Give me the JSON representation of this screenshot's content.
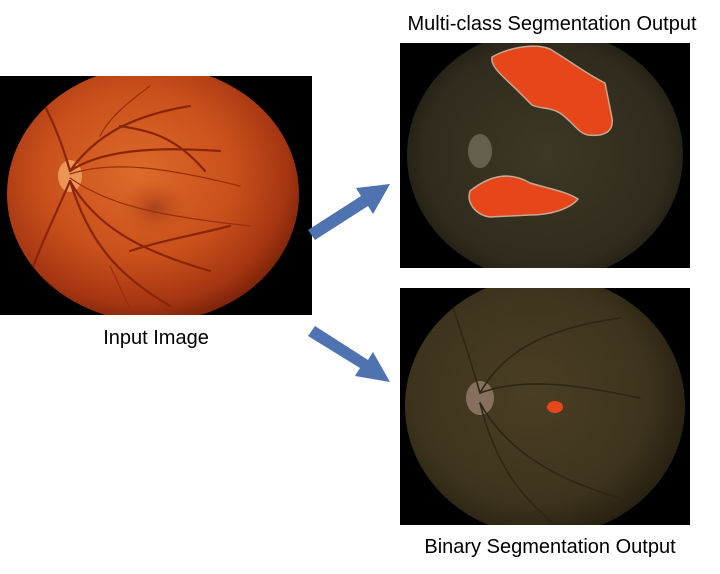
{
  "labels": {
    "input": "Input Image",
    "multiclass": "Multi-class Segmentation Output",
    "binary": "Binary Segmentation Output"
  },
  "colors": {
    "arrow": "#4f72b0",
    "fundus_orange": "#d0561f",
    "segmentation_red": "#e8461a",
    "dark_fundus": "#3a3320"
  },
  "icons": {
    "arrow_upper": "arrow-up-right-icon",
    "arrow_lower": "arrow-down-right-icon"
  }
}
